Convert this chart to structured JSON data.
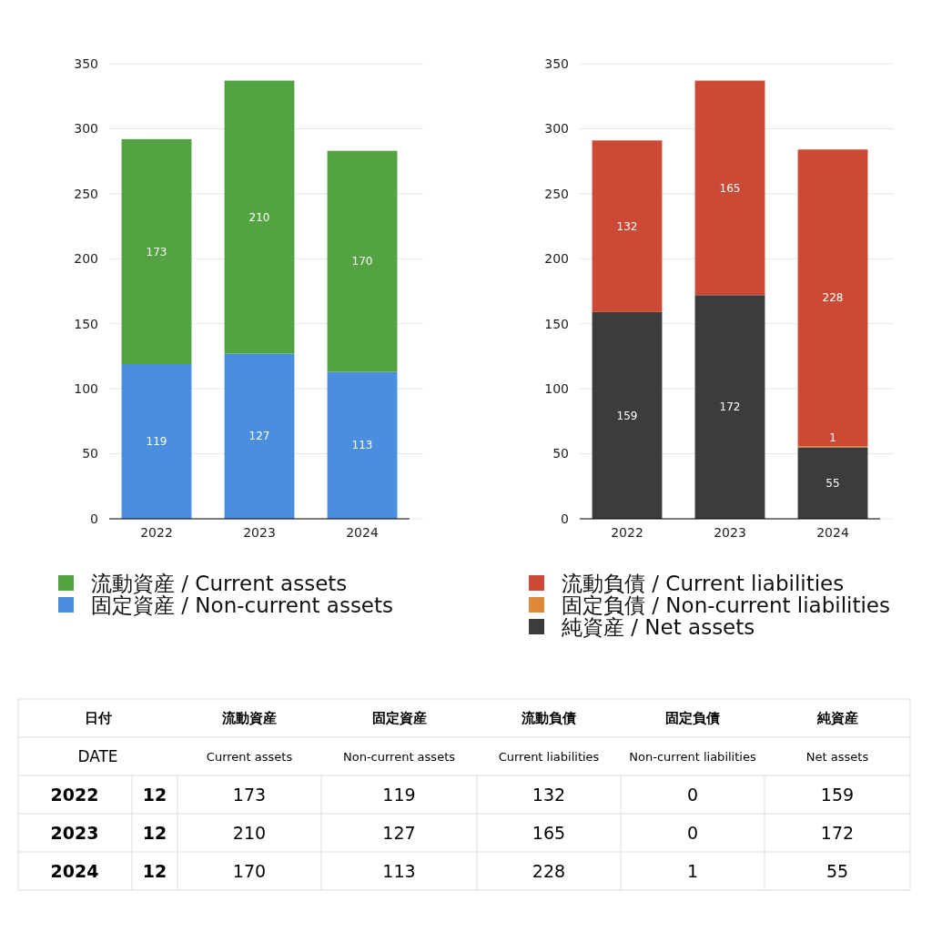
{
  "chart_data": [
    {
      "type": "bar",
      "stacked": true,
      "categories": [
        "2022",
        "2023",
        "2024"
      ],
      "ylim": [
        0,
        350
      ],
      "yticks": [
        0,
        50,
        100,
        150,
        200,
        250,
        300,
        350
      ],
      "grid": "y",
      "legend": "bottom",
      "data_labels": true,
      "series": [
        {
          "name": "固定資産 / Non-current assets",
          "color": "#4a8ee0",
          "values": [
            119,
            127,
            113
          ]
        },
        {
          "name": "流動資産 / Current assets",
          "color": "#54a343",
          "values": [
            173,
            210,
            170
          ]
        }
      ]
    },
    {
      "type": "bar",
      "stacked": true,
      "categories": [
        "2022",
        "2023",
        "2024"
      ],
      "ylim": [
        0,
        350
      ],
      "yticks": [
        0,
        50,
        100,
        150,
        200,
        250,
        300,
        350
      ],
      "grid": "y",
      "legend": "bottom",
      "series": [
        {
          "name": "純資産 / Net assets",
          "color": "#3c3c3c",
          "values": [
            159,
            172,
            55
          ],
          "value_labels": [
            "159",
            "172",
            "55"
          ]
        },
        {
          "name": "固定負債 / Non-current liabilities",
          "color": "#e0883a",
          "values": [
            0,
            0,
            1
          ],
          "value_labels": [
            null,
            null,
            "1"
          ]
        },
        {
          "name": "流動負債 / Current liabilities",
          "color": "#cc4a35",
          "values": [
            132,
            165,
            228
          ],
          "value_labels": [
            "132",
            "165",
            "228"
          ]
        }
      ]
    },
    {
      "type": "other",
      "categories": [
        "2022",
        "2023",
        "2024"
      ],
      "data_labels": true,
      "annotations": [
        "日付",
        "DATE",
        "Current assets",
        "Non-current assets",
        "Current liabilities",
        "Non-current liabilities",
        "Net assets",
        "12",
        "12",
        "12"
      ],
      "series": [
        {
          "name": "流動資産",
          "values": [
            173,
            210,
            170
          ]
        },
        {
          "name": "固定資産",
          "values": [
            119,
            127,
            113
          ]
        },
        {
          "name": "流動負債",
          "values": [
            132,
            165,
            228
          ]
        },
        {
          "name": "固定負債",
          "values": [
            0,
            0,
            1
          ]
        },
        {
          "name": "純資産",
          "values": [
            159,
            172,
            55
          ]
        }
      ]
    }
  ]
}
